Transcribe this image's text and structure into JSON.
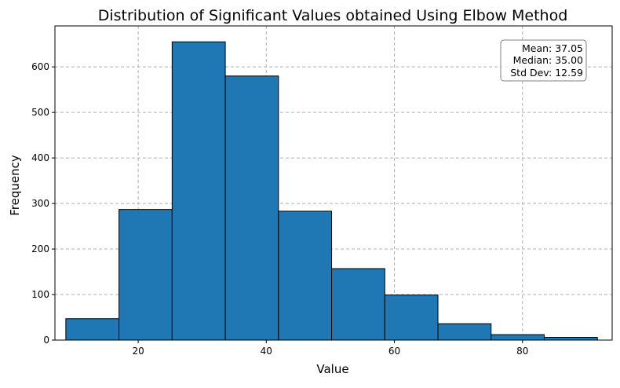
{
  "chart_data": {
    "type": "histogram",
    "title": "Distribution of Significant Values obtained Using Elbow Method",
    "xlabel": "Value",
    "ylabel": "Frequency",
    "xlim": [
      7,
      94
    ],
    "ylim": [
      0,
      690
    ],
    "xticks": [
      20,
      40,
      60,
      80
    ],
    "yticks": [
      0,
      100,
      200,
      300,
      400,
      500,
      600,
      700
    ],
    "grid": true,
    "bins": [
      {
        "x0": 8.7,
        "x1": 17.0,
        "count": 47
      },
      {
        "x0": 17.0,
        "x1": 25.3,
        "count": 287
      },
      {
        "x0": 25.3,
        "x1": 33.6,
        "count": 655
      },
      {
        "x0": 33.6,
        "x1": 41.9,
        "count": 580
      },
      {
        "x0": 41.9,
        "x1": 50.2,
        "count": 283
      },
      {
        "x0": 50.2,
        "x1": 58.5,
        "count": 157
      },
      {
        "x0": 58.5,
        "x1": 66.8,
        "count": 99
      },
      {
        "x0": 66.8,
        "x1": 75.1,
        "count": 36
      },
      {
        "x0": 75.1,
        "x1": 83.4,
        "count": 12
      },
      {
        "x0": 83.4,
        "x1": 91.7,
        "count": 6
      }
    ],
    "bar_color": "#1f77b4",
    "edge_color": "#000000",
    "stats": [
      "Mean: 37.05",
      "Median: 35.00",
      "Std Dev: 12.59"
    ]
  }
}
